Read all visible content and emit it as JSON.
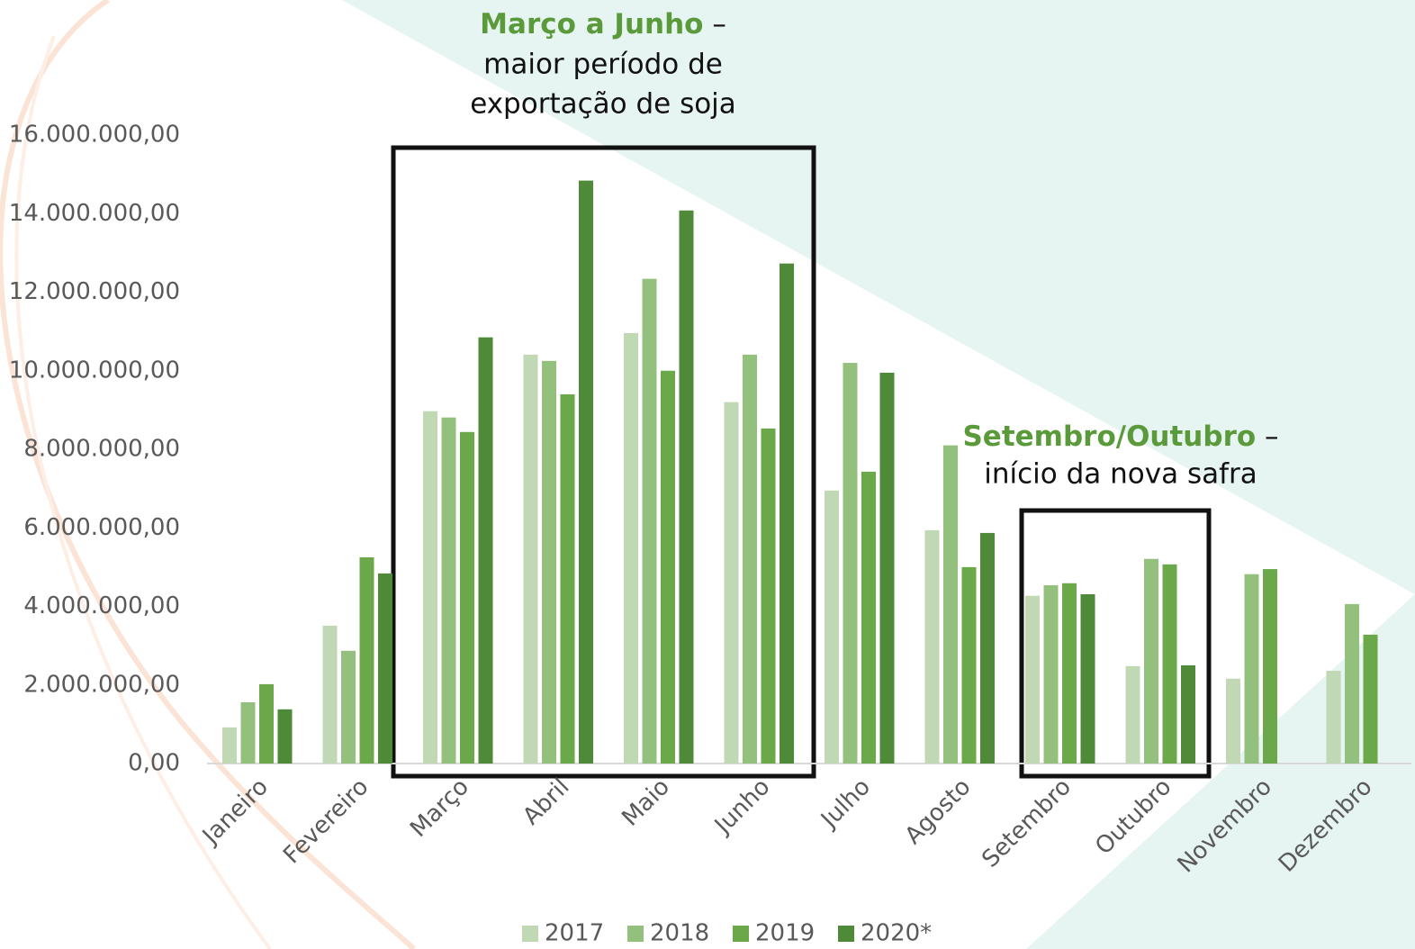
{
  "chart_data": {
    "type": "bar",
    "categories": [
      "Janeiro",
      "Fevereiro",
      "Março",
      "Abril",
      "Maio",
      "Junho",
      "Julho",
      "Agosto",
      "Setembro",
      "Outubro",
      "Novembro",
      "Dezembro"
    ],
    "series": [
      {
        "name": "2017",
        "color": "#c0d8b4",
        "values": [
          920000,
          3510000,
          8970000,
          10410000,
          10960000,
          9200000,
          6950000,
          5940000,
          4270000,
          2480000,
          2160000,
          2360000
        ]
      },
      {
        "name": "2018",
        "color": "#94c07e",
        "values": [
          1560000,
          2870000,
          8810000,
          10250000,
          12340000,
          10410000,
          10200000,
          8100000,
          4540000,
          5210000,
          4820000,
          4060000
        ]
      },
      {
        "name": "2019",
        "color": "#6aa84a",
        "values": [
          2020000,
          5250000,
          8440000,
          9400000,
          10000000,
          8530000,
          7430000,
          5000000,
          4590000,
          5070000,
          4950000,
          3280000
        ]
      },
      {
        "name": "2020*",
        "color": "#4f8a38",
        "values": [
          1380000,
          4840000,
          10850000,
          14840000,
          14080000,
          12730000,
          9950000,
          5870000,
          4310000,
          2500000,
          null,
          null
        ]
      }
    ],
    "ylim": [
      0,
      16000000
    ],
    "yticks": [
      {
        "value": 0,
        "label": "0,00"
      },
      {
        "value": 2000000,
        "label": "2.000.000,00"
      },
      {
        "value": 4000000,
        "label": "4.000.000,00"
      },
      {
        "value": 6000000,
        "label": "6.000.000,00"
      },
      {
        "value": 8000000,
        "label": "8.000.000,00"
      },
      {
        "value": 10000000,
        "label": "10.000.000,00"
      },
      {
        "value": 12000000,
        "label": "12.000.000,00"
      },
      {
        "value": 14000000,
        "label": "14.000.000,00"
      },
      {
        "value": 16000000,
        "label": "16.000.000,00"
      }
    ],
    "grid": false,
    "legend": "bottom",
    "annotations": [
      {
        "title": "Março a Junho",
        "dash": "–",
        "lines": [
          "maior período de",
          "exportação de soja"
        ]
      },
      {
        "title": "Setembro/Outubro",
        "dash": "–",
        "lines": [
          "início da nova safra"
        ]
      }
    ]
  }
}
